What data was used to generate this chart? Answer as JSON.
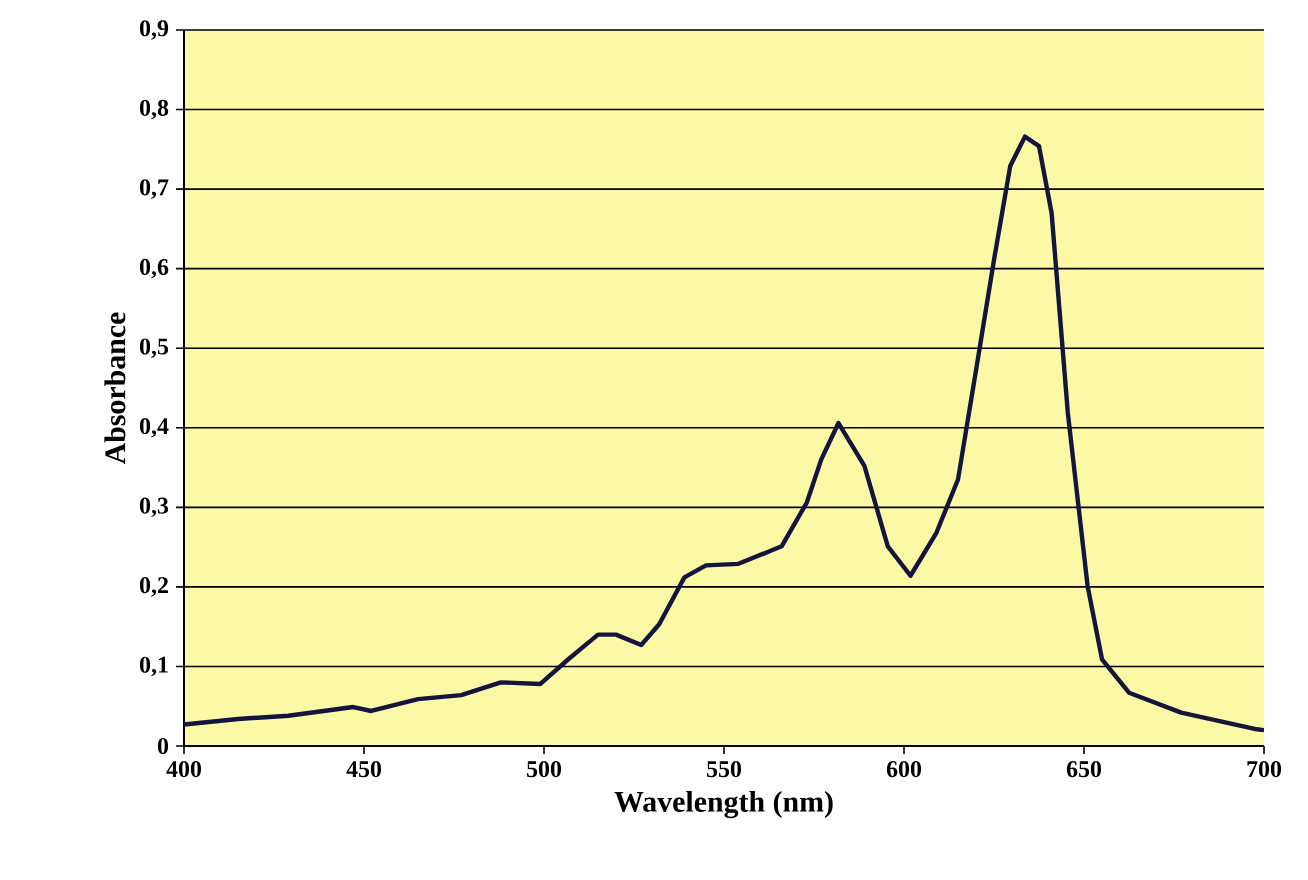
{
  "chart_data": {
    "type": "line",
    "xlabel": "Wavelength (nm)",
    "ylabel": "Absorbance",
    "x": [
      400,
      415,
      429,
      447,
      452,
      465,
      477,
      488,
      499,
      507,
      515,
      520,
      527,
      532,
      539,
      545,
      554,
      566,
      573,
      577,
      581.8,
      589,
      595.5,
      601.8,
      609,
      615,
      620.5,
      625,
      629.5,
      633.6,
      637.5,
      641,
      645.5,
      651,
      655,
      662.5,
      677,
      698,
      700
    ],
    "series": [
      {
        "color": "#14143c",
        "values": [
          0.027,
          0.034,
          0.038,
          0.049,
          0.044,
          0.059,
          0.064,
          0.08,
          0.078,
          0.11,
          0.14,
          0.14,
          0.127,
          0.153,
          0.212,
          0.227,
          0.229,
          0.251,
          0.306,
          0.36,
          0.406,
          0.352,
          0.251,
          0.214,
          0.268,
          0.335,
          0.486,
          0.611,
          0.729,
          0.766,
          0.754,
          0.67,
          0.419,
          0.201,
          0.109,
          0.067,
          0.042,
          0.021,
          0.02
        ]
      }
    ],
    "xlim": [
      400,
      700
    ],
    "ylim": [
      0,
      0.9
    ],
    "xticks": [
      400,
      450,
      500,
      550,
      600,
      650,
      700
    ],
    "yticks": [
      0,
      {
        "value": 0.1,
        "label": "0,1"
      },
      {
        "value": 0.2,
        "label": "0,2"
      },
      {
        "value": 0.3,
        "label": "0,3"
      },
      {
        "value": 0.4,
        "label": "0,4"
      },
      {
        "value": 0.5,
        "label": "0,5"
      },
      {
        "value": 0.6,
        "label": "0,6"
      },
      {
        "value": 0.7,
        "label": "0,7"
      },
      {
        "value": 0.8,
        "label": "0,8"
      },
      {
        "value": 0.9,
        "label": "0,9"
      }
    ],
    "grid": "y",
    "marker": "none",
    "line_style": "solid"
  }
}
